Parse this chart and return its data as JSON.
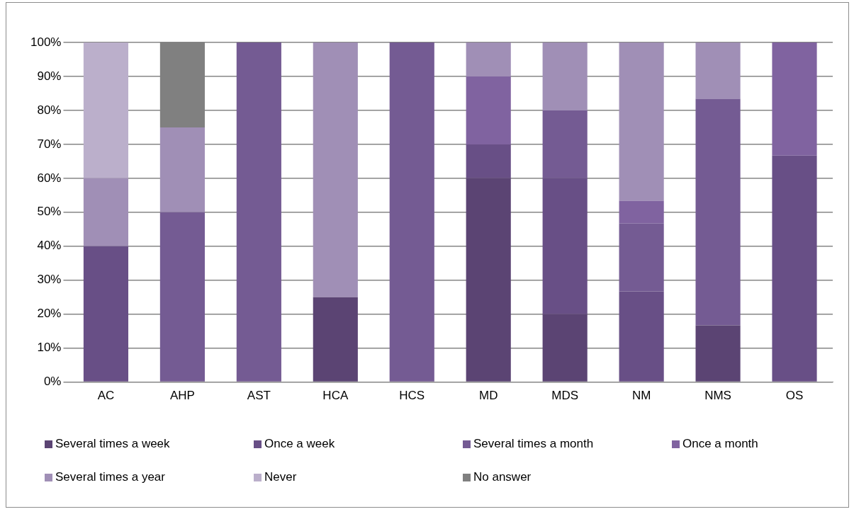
{
  "chart_data": {
    "type": "bar",
    "stacked": true,
    "categories": [
      "AC",
      "AHP",
      "AST",
      "HCA",
      "HCS",
      "MD",
      "MDS",
      "NM",
      "NMS",
      "OS"
    ],
    "series": [
      {
        "name": "Several times a week",
        "color": "#5b4473",
        "values": [
          0,
          0,
          0,
          25,
          0,
          60,
          20,
          0,
          16.7,
          0
        ]
      },
      {
        "name": "Once a week",
        "color": "#684f86",
        "values": [
          40,
          0,
          0,
          0,
          0,
          10,
          40,
          26.7,
          0,
          66.7
        ]
      },
      {
        "name": "Several times a month",
        "color": "#745b93",
        "values": [
          0,
          50,
          100,
          0,
          100,
          0,
          20,
          20,
          66.7,
          0
        ]
      },
      {
        "name": "Once a month",
        "color": "#8063a0",
        "values": [
          0,
          0,
          0,
          0,
          0,
          20,
          0,
          6.7,
          0,
          33.3
        ]
      },
      {
        "name": "Several times a year",
        "color": "#a08fb6",
        "values": [
          20,
          25,
          0,
          75,
          0,
          10,
          20,
          46.7,
          16.7,
          0
        ]
      },
      {
        "name": "Never",
        "color": "#bbafcb",
        "values": [
          40,
          0,
          0,
          0,
          0,
          0,
          0,
          0,
          0,
          0
        ]
      },
      {
        "name": "No answer",
        "color": "#808080",
        "values": [
          0,
          25,
          0,
          0,
          0,
          0,
          0,
          0,
          0,
          0
        ]
      }
    ],
    "ylim": [
      0,
      100
    ],
    "yticks": [
      {
        "value": 0,
        "label": "0%"
      },
      {
        "value": 10,
        "label": "10%"
      },
      {
        "value": 20,
        "label": "20%"
      },
      {
        "value": 30,
        "label": "30%"
      },
      {
        "value": 40,
        "label": "40%"
      },
      {
        "value": 50,
        "label": "50%"
      },
      {
        "value": 60,
        "label": "60%"
      },
      {
        "value": 70,
        "label": "70%"
      },
      {
        "value": 80,
        "label": "80%"
      },
      {
        "value": 90,
        "label": "90%"
      },
      {
        "value": 100,
        "label": "100%"
      }
    ],
    "grid": "y",
    "legend": "bottom"
  }
}
